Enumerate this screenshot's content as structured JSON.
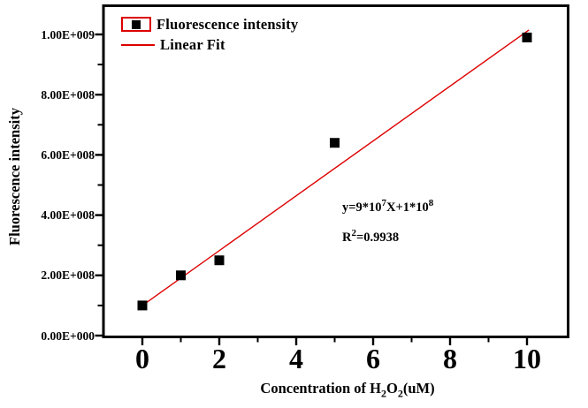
{
  "figure": {
    "background": "#ffffff",
    "text_color": "#000000"
  },
  "legend": {
    "items": [
      {
        "label": "Fluorescence intensity",
        "symbol": "black-square-in-red-box"
      },
      {
        "label": "Linear Fit",
        "symbol": "red-line"
      }
    ]
  },
  "annotation": {
    "equation": {
      "p1": "y=9*10",
      "sup1": "7",
      "p2": "X+1*10",
      "sup2": "8"
    },
    "r_squared": {
      "p1": "R",
      "sup": "2",
      "p2": "=0.9938"
    }
  },
  "axes": {
    "y_title": "Fluorescence intensity",
    "x_title": {
      "p1": "Concentration of H",
      "s1": "2",
      "p2": "O",
      "s2": "2",
      "p3": "(uM)"
    }
  },
  "chart_data": {
    "type": "scatter",
    "title": "",
    "xlabel": "Concentration of H2O2(uM)",
    "ylabel": "Fluorescence intensity",
    "xlim": [
      -1,
      11.1
    ],
    "ylim": [
      0,
      1100000000.0
    ],
    "grid": false,
    "legend_position": "top-left-inside",
    "series": [
      {
        "name": "Fluorescence intensity",
        "marker": "black-square",
        "x": [
          0,
          1,
          2,
          5,
          10
        ],
        "y": [
          100000000.0,
          200000000.0,
          250000000.0,
          640000000.0,
          990000000.0
        ]
      }
    ],
    "fit": {
      "name": "Linear Fit",
      "equation_label": "y=9*10^7X+1*10^8",
      "slope": 90000000.0,
      "intercept": 100000000.0,
      "r_squared": 0.9938,
      "color": "#dd0000",
      "drawn_x": [
        0,
        10.05
      ],
      "drawn_y": [
        100000000.0,
        1015000000.0
      ]
    },
    "x_ticks": [
      0,
      2,
      4,
      6,
      8,
      10
    ],
    "x_minor_ticks": [
      1,
      3,
      5,
      7,
      9
    ],
    "y_tick_values": [
      0,
      200000000.0,
      400000000.0,
      600000000.0,
      800000000.0,
      1000000000.0
    ],
    "y_tick_labels": [
      "0.00E+000",
      "2.00E+008",
      "4.00E+008",
      "6.00E+008",
      "8.00E+008",
      "1.00E+009"
    ],
    "y_minor_tick_values": [
      100000000.0,
      300000000.0,
      500000000.0,
      700000000.0,
      900000000.0
    ],
    "marker_color": "#000000",
    "frame_color": "#000000"
  }
}
